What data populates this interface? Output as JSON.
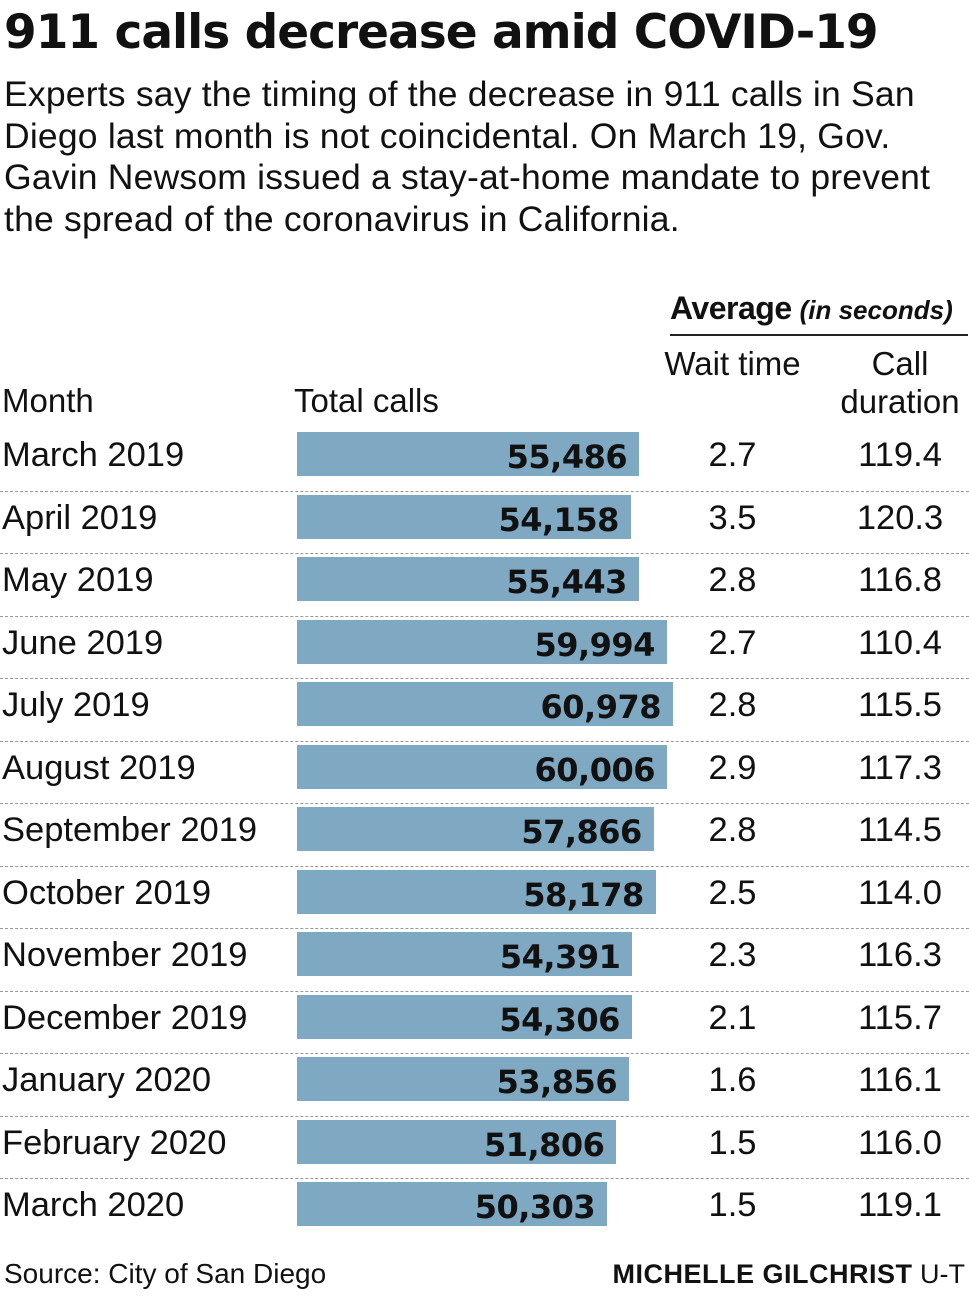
{
  "chart_data": {
    "type": "bar",
    "title": "911 calls decrease amid COVID-19",
    "subtitle": "Experts say the timing of the decrease in 911 calls in San Diego last month is not coincidental. On March 19, Gov. Gavin Newsom issued a stay-at-home mandate to prevent the spread of the coronavirus in California.",
    "group_header": "Average",
    "group_unit": "(in seconds)",
    "columns": {
      "month": "Month",
      "total_calls": "Total calls",
      "wait_time": "Wait time",
      "call_duration": "Call duration"
    },
    "categories": [
      "March 2019",
      "April 2019",
      "May 2019",
      "June 2019",
      "July 2019",
      "August 2019",
      "September 2019",
      "October 2019",
      "November 2019",
      "December 2019",
      "January 2020",
      "February 2020",
      "March 2020"
    ],
    "series": [
      {
        "name": "Total calls",
        "values": [
          55486,
          54158,
          55443,
          59994,
          60978,
          60006,
          57866,
          58178,
          54391,
          54306,
          53856,
          51806,
          50303
        ],
        "labels": [
          "55,486",
          "54,158",
          "55,443",
          "59,994",
          "60,978",
          "60,006",
          "57,866",
          "58,178",
          "54,391",
          "54,306",
          "53,856",
          "51,806",
          "50,303"
        ]
      },
      {
        "name": "Wait time",
        "values": [
          "2.7",
          "3.5",
          "2.8",
          "2.7",
          "2.8",
          "2.9",
          "2.8",
          "2.5",
          "2.3",
          "2.1",
          "1.6",
          "1.5",
          "1.5"
        ]
      },
      {
        "name": "Call duration",
        "values": [
          "119.4",
          "120.3",
          "116.8",
          "110.4",
          "115.5",
          "117.3",
          "114.5",
          "114.0",
          "116.3",
          "115.7",
          "116.1",
          "116.0",
          "119.1"
        ]
      }
    ],
    "bar_color": "#7fa8c2",
    "source": "Source: City of San Diego",
    "credit_name": "MICHELLE GILCHRIST",
    "credit_org": "U-T"
  }
}
